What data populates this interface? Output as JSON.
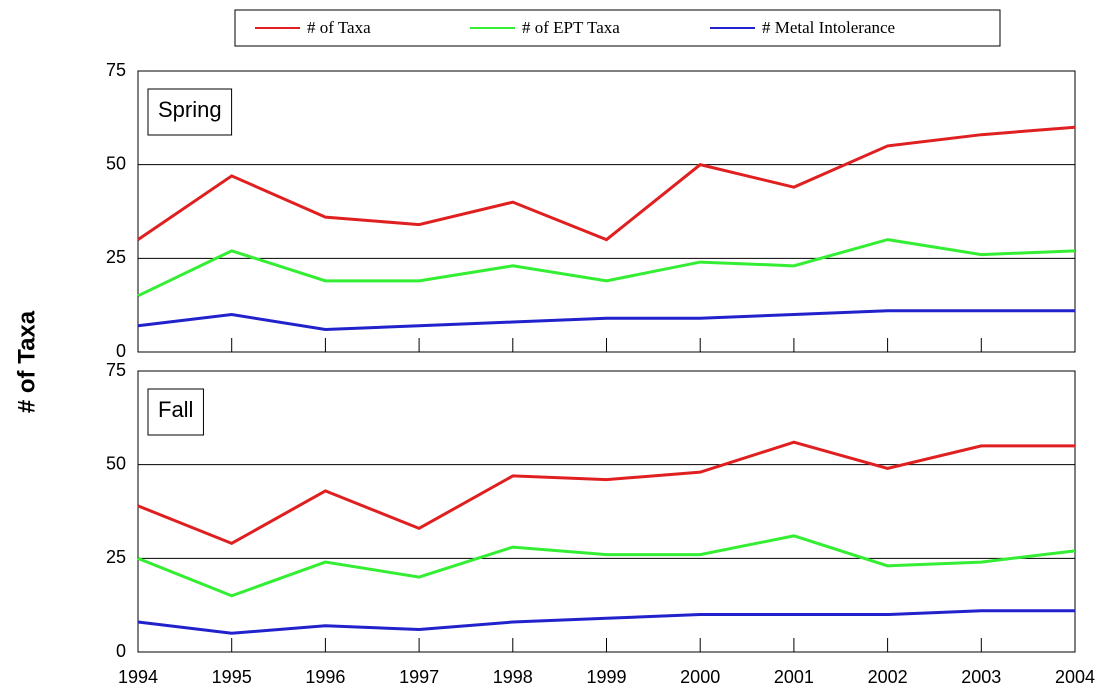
{
  "chart_data": [
    {
      "type": "line",
      "panel_label": "Spring",
      "y_label": "# of Taxa",
      "categories": [
        "1994",
        "1995",
        "1996",
        "1997",
        "1998",
        "1999",
        "2000",
        "2001",
        "2002",
        "2003",
        "2004"
      ],
      "ylim": [
        0,
        75
      ],
      "yticks": [
        0,
        25,
        50,
        75
      ],
      "grid": true,
      "series": [
        {
          "name": "# of Taxa",
          "color": "#e02020",
          "values": [
            30,
            47,
            36,
            34,
            40,
            30,
            50,
            44,
            55,
            58,
            60
          ]
        },
        {
          "name": "# of EPT Taxa",
          "color": "#33ee33",
          "values": [
            15,
            27,
            19,
            19,
            23,
            19,
            24,
            23,
            30,
            26,
            27
          ]
        },
        {
          "name": "# Metal Intolerance",
          "color": "#2222cc",
          "values": [
            7,
            10,
            6,
            7,
            8,
            9,
            9,
            10,
            11,
            11,
            11
          ]
        }
      ]
    },
    {
      "type": "line",
      "panel_label": "Fall",
      "categories": [
        "1994",
        "1995",
        "1996",
        "1997",
        "1998",
        "1999",
        "2000",
        "2001",
        "2002",
        "2003",
        "2004"
      ],
      "ylim": [
        0,
        75
      ],
      "yticks": [
        0,
        25,
        50,
        75
      ],
      "grid": true,
      "series": [
        {
          "name": "# of Taxa",
          "color": "#e02020",
          "values": [
            39,
            29,
            43,
            33,
            47,
            46,
            48,
            56,
            49,
            55,
            55
          ]
        },
        {
          "name": "# of EPT Taxa",
          "color": "#33ee33",
          "values": [
            25,
            15,
            24,
            20,
            28,
            26,
            26,
            31,
            23,
            24,
            27
          ]
        },
        {
          "name": "# Metal Intolerance",
          "color": "#2222cc",
          "values": [
            8,
            5,
            7,
            6,
            8,
            9,
            10,
            10,
            10,
            11,
            11
          ]
        }
      ]
    }
  ]
}
